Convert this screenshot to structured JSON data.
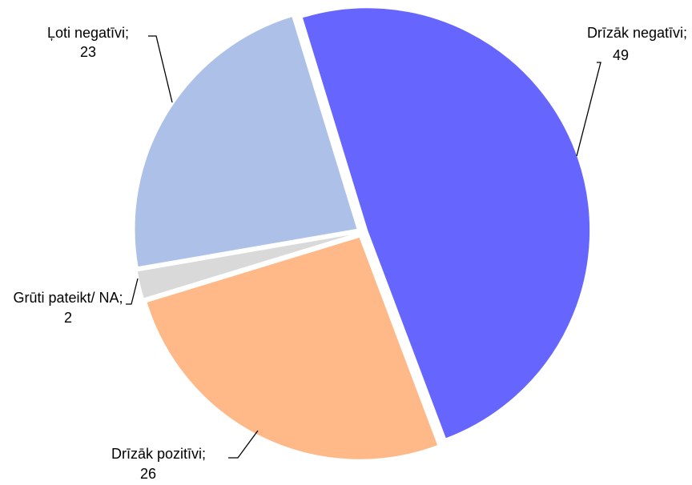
{
  "chart_data": {
    "type": "pie",
    "categories": [
      "Drīzāk negatīvi;",
      "Drīzāk pozitīvi;",
      "Grūti pateikt/ NA;",
      "Ļoti negatīvi;"
    ],
    "values": [
      49,
      26,
      2,
      23
    ],
    "colors": [
      "#6666ff",
      "#ffb888",
      "#d9d9d9",
      "#adc1e8"
    ]
  }
}
